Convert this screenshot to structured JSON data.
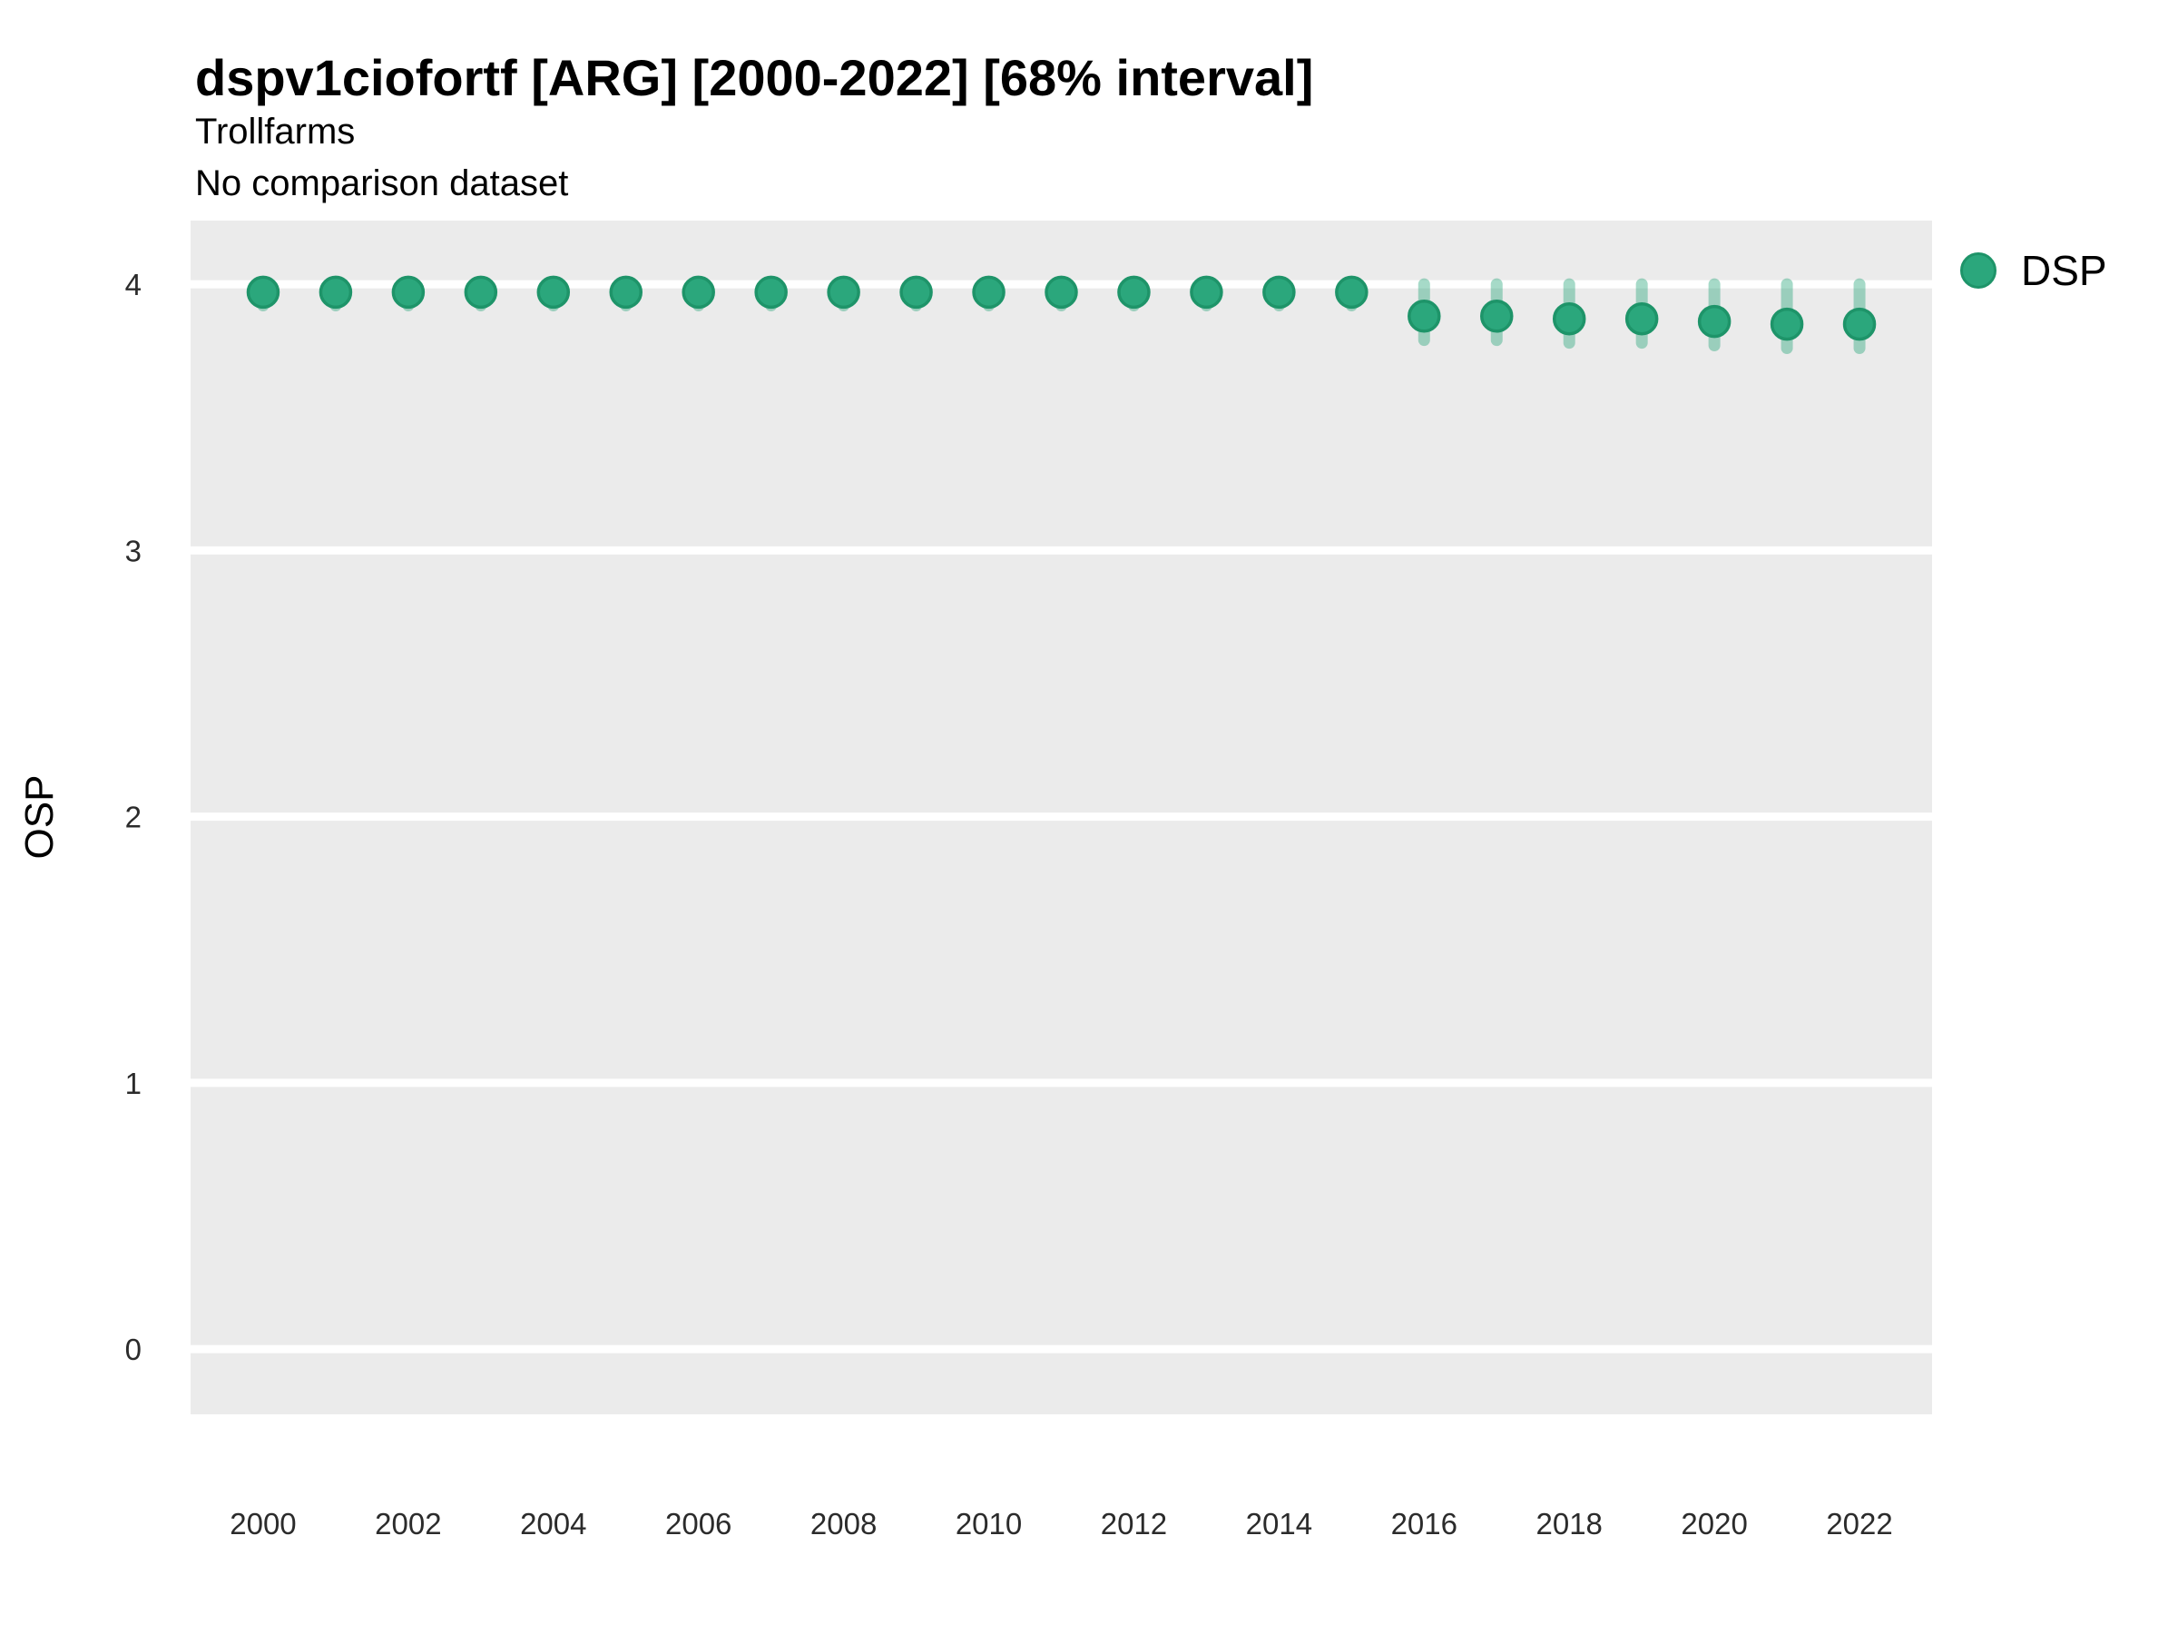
{
  "header": {
    "title": "dspv1ciofortf [ARG] [2000-2022] [68% interval]",
    "subtitle": "Trollfarms",
    "comparison_note": "No comparison dataset"
  },
  "legend": {
    "position": "right",
    "items": [
      {
        "label": "DSP",
        "swatch_shape": "circle"
      }
    ]
  },
  "colors": {
    "panel_background": "#EBEBEB",
    "figure_background": "#FFFFFF",
    "gridline": "#FFFFFF",
    "marker_fill": "#2BA77C",
    "marker_edge": "#1E9469",
    "interval_stroke": "rgba(43,167,124,0.42)",
    "tick_text": "#2b2b2b",
    "title_text": "#000000"
  },
  "chart_data": {
    "type": "scatter",
    "title": "dspv1ciofortf [ARG] [2000-2022] [68% interval]",
    "subtitle": "Trollfarms",
    "note": "No comparison dataset",
    "xlabel": "",
    "ylabel": "OSP",
    "interval_label": "68% interval",
    "grid": "major-horizontal-only",
    "legend_position": "right",
    "xlim": [
      1999,
      2023
    ],
    "ylim": [
      -0.245,
      4.239
    ],
    "x_tick_labels": [
      2000,
      2002,
      2004,
      2006,
      2008,
      2010,
      2012,
      2014,
      2016,
      2018,
      2020,
      2022
    ],
    "y_ticks": [
      0,
      1,
      2,
      3,
      4
    ],
    "series": [
      {
        "name": "DSP",
        "x": [
          2000,
          2001,
          2002,
          2003,
          2004,
          2005,
          2006,
          2007,
          2008,
          2009,
          2010,
          2011,
          2012,
          2013,
          2014,
          2015,
          2016,
          2017,
          2018,
          2019,
          2020,
          2021,
          2022
        ],
        "y": [
          3.97,
          3.97,
          3.97,
          3.97,
          3.97,
          3.97,
          3.97,
          3.97,
          3.97,
          3.97,
          3.97,
          3.97,
          3.97,
          3.97,
          3.97,
          3.97,
          3.88,
          3.88,
          3.87,
          3.87,
          3.86,
          3.85,
          3.85
        ],
        "lo": [
          3.92,
          3.92,
          3.92,
          3.92,
          3.92,
          3.92,
          3.92,
          3.92,
          3.92,
          3.92,
          3.92,
          3.92,
          3.92,
          3.92,
          3.92,
          3.92,
          3.79,
          3.79,
          3.78,
          3.78,
          3.77,
          3.76,
          3.76
        ],
        "hi": [
          4.0,
          4.0,
          4.0,
          4.0,
          4.0,
          4.0,
          4.0,
          4.0,
          4.0,
          4.0,
          4.0,
          4.0,
          4.0,
          4.0,
          4.0,
          4.0,
          4.0,
          4.0,
          4.0,
          4.0,
          4.0,
          4.0,
          4.0
        ]
      }
    ]
  }
}
